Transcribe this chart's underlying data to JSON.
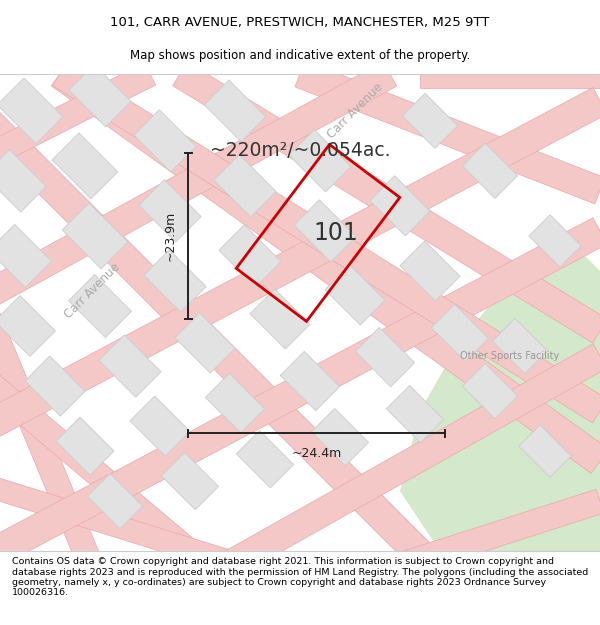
{
  "title_line1": "101, CARR AVENUE, PRESTWICH, MANCHESTER, M25 9TT",
  "title_line2": "Map shows position and indicative extent of the property.",
  "area_text": "~220m²/~0.054ac.",
  "label_101": "101",
  "dim_width": "~24.4m",
  "dim_height": "~23.9m",
  "label_carr_avenue_top": "Carr Avenue",
  "label_carr_avenue_left": "Carr Avenue",
  "label_other_sports": "Other Sports Facility",
  "footer_text": "Contains OS data © Crown copyright and database right 2021. This information is subject to Crown copyright and database rights 2023 and is reproduced with the permission of HM Land Registry. The polygons (including the associated geometry, namely x, y co-ordinates) are subject to Crown copyright and database rights 2023 Ordnance Survey 100026316.",
  "bg_color": "#f2f2f2",
  "block_color": "#e2e2e2",
  "block_edge_color": "#cccccc",
  "road_color": "#f5c8c8",
  "road_edge_color": "#e8a8a8",
  "property_edge_color": "#cc0000",
  "green_area_color": "#d4e8cc",
  "street_label_color": "#aaaaaa",
  "sports_label_color": "#999999",
  "dim_line_color": "#222222",
  "text_color": "#333333"
}
